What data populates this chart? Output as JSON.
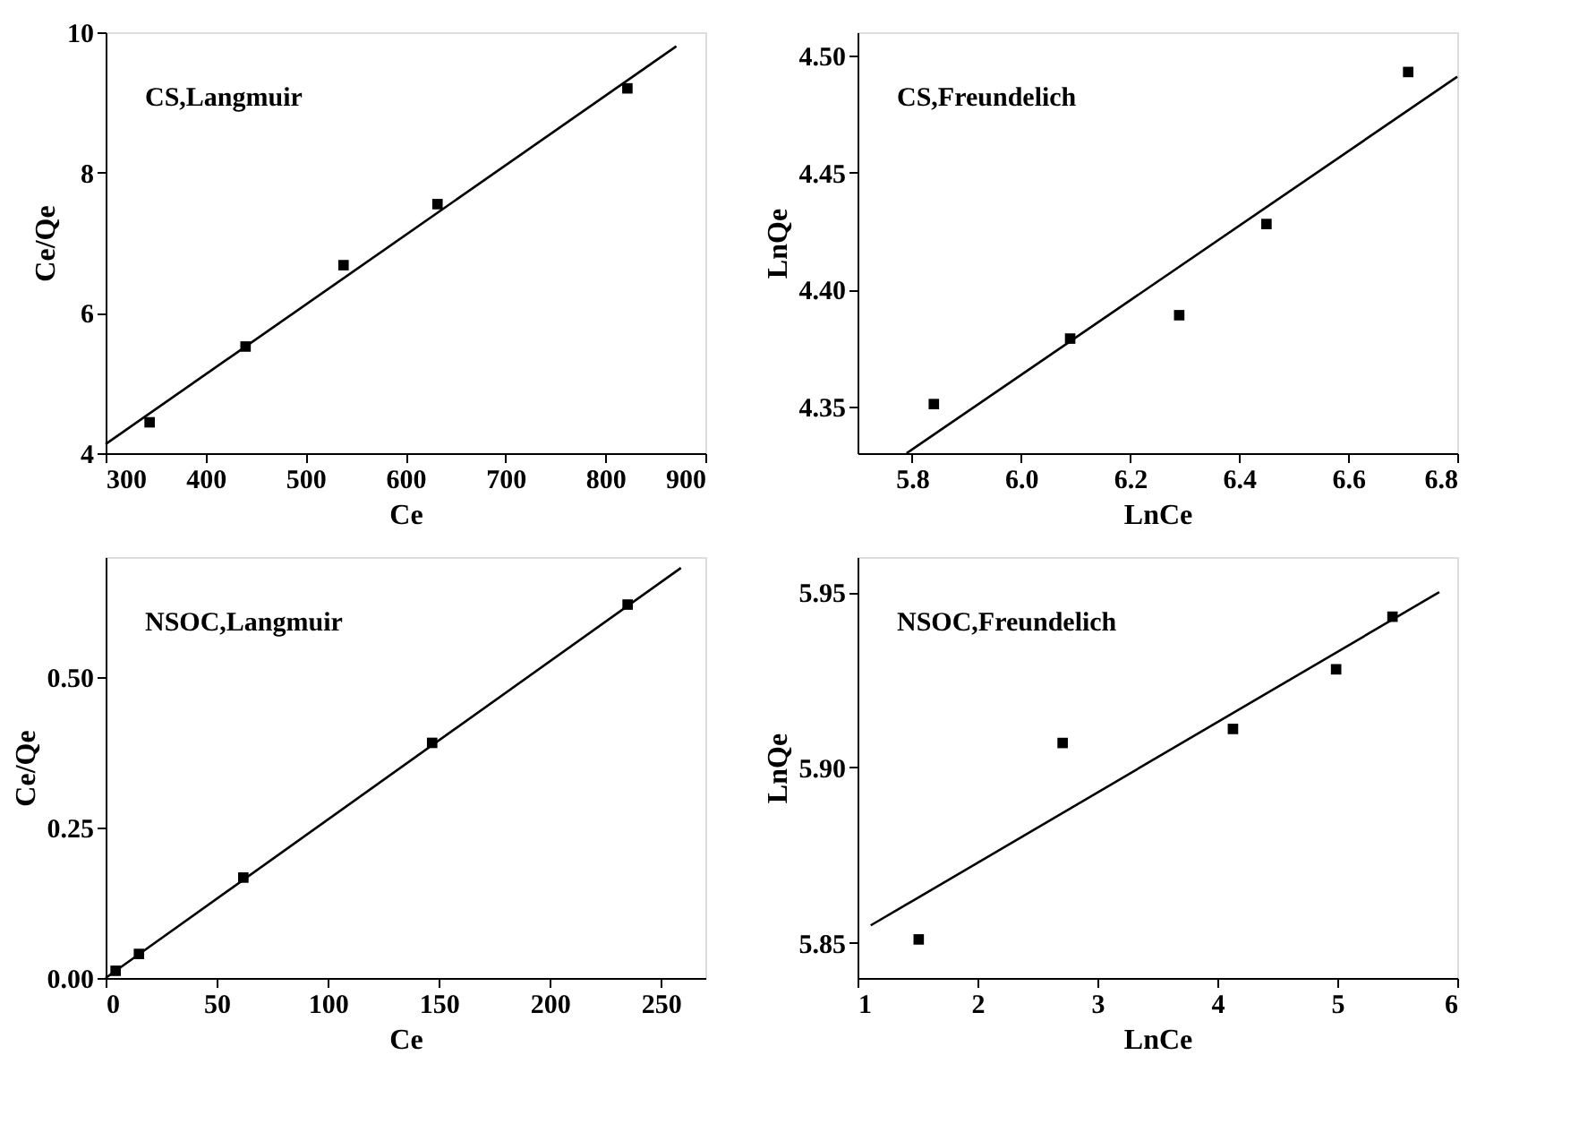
{
  "chart_data": [
    {
      "type": "scatter",
      "xlabel": "Ce",
      "ylabel": "Ce/Qe",
      "annotations": [
        "CS,Langmuir"
      ],
      "xlim": [
        300,
        900
      ],
      "ylim": [
        4,
        10
      ],
      "xticks": [
        300,
        400,
        500,
        600,
        700,
        800,
        900
      ],
      "yticks": [
        4,
        6,
        8,
        10
      ],
      "grid": false,
      "series": [
        {
          "type": "scatter",
          "marker": "square",
          "color": "#000000",
          "x": [
            344,
            440,
            538,
            632,
            822
          ],
          "values": [
            4.44,
            5.52,
            6.68,
            7.55,
            9.2
          ]
        },
        {
          "type": "line",
          "marker": "none",
          "color": "#000000",
          "line_style": "solid",
          "x": [
            300,
            871
          ],
          "values": [
            4.13,
            9.8
          ]
        }
      ]
    },
    {
      "type": "scatter",
      "xlabel": "LnCe",
      "ylabel": "LnQe",
      "annotations": [
        "CS,Freundelich"
      ],
      "xlim": [
        5.7,
        6.8
      ],
      "ylim": [
        4.33,
        4.51
      ],
      "xticks": [
        {
          "value": 5.8,
          "label": "5.8"
        },
        {
          "value": 6.0,
          "label": "6.0"
        },
        {
          "value": 6.2,
          "label": "6.2"
        },
        {
          "value": 6.4,
          "label": "6.4"
        },
        {
          "value": 6.6,
          "label": "6.6"
        },
        {
          "value": 6.8,
          "label": "6.8"
        }
      ],
      "yticks": [
        4.35,
        {
          "value": 4.4,
          "label": "4.40"
        },
        4.45,
        {
          "value": 4.5,
          "label": "4.50"
        }
      ],
      "grid": false,
      "series": [
        {
          "type": "scatter",
          "marker": "square",
          "color": "#000000",
          "x": [
            5.84,
            6.09,
            6.29,
            6.45,
            6.71
          ],
          "values": [
            4.351,
            4.379,
            4.389,
            4.428,
            4.493
          ]
        },
        {
          "type": "line",
          "marker": "none",
          "color": "#000000",
          "line_style": "solid",
          "x": [
            5.79,
            6.8
          ],
          "values": [
            4.33,
            4.491
          ]
        }
      ]
    },
    {
      "type": "scatter",
      "xlabel": "Ce",
      "ylabel": "Ce/Qe",
      "annotations": [
        "NSOC,Langmuir"
      ],
      "xlim": [
        0,
        270
      ],
      "ylim": [
        0,
        0.7
      ],
      "xticks": [
        0,
        50,
        100,
        150,
        200,
        250
      ],
      "yticks": [
        {
          "value": 0,
          "label": "0.00"
        },
        0.25,
        {
          "value": 0.5,
          "label": "0.50"
        }
      ],
      "grid": false,
      "series": [
        {
          "type": "scatter",
          "marker": "square",
          "color": "#000000",
          "x": [
            4.5,
            15,
            62,
            147,
            235
          ],
          "values": [
            0.012,
            0.04,
            0.167,
            0.391,
            0.621
          ]
        },
        {
          "type": "line",
          "marker": "none",
          "color": "#000000",
          "line_style": "solid",
          "x": [
            0,
            259
          ],
          "values": [
            0,
            0.682
          ]
        }
      ]
    },
    {
      "type": "scatter",
      "xlabel": "LnCe",
      "ylabel": "LnQe",
      "annotations": [
        "NSOC,Freundelich"
      ],
      "xlim": [
        1,
        6
      ],
      "ylim": [
        5.84,
        5.96
      ],
      "xticks": [
        1,
        2,
        3,
        4,
        5,
        6
      ],
      "yticks": [
        5.85,
        {
          "value": 5.9,
          "label": "5.90"
        },
        5.95
      ],
      "grid": false,
      "series": [
        {
          "type": "scatter",
          "marker": "square",
          "color": "#000000",
          "x": [
            1.51,
            2.71,
            4.13,
            4.99,
            5.46
          ],
          "values": [
            5.851,
            5.907,
            5.911,
            5.928,
            5.943
          ]
        },
        {
          "type": "line",
          "marker": "none",
          "color": "#000000",
          "line_style": "solid",
          "x": [
            1.11,
            5.85
          ],
          "values": [
            5.855,
            5.95
          ]
        }
      ]
    }
  ]
}
